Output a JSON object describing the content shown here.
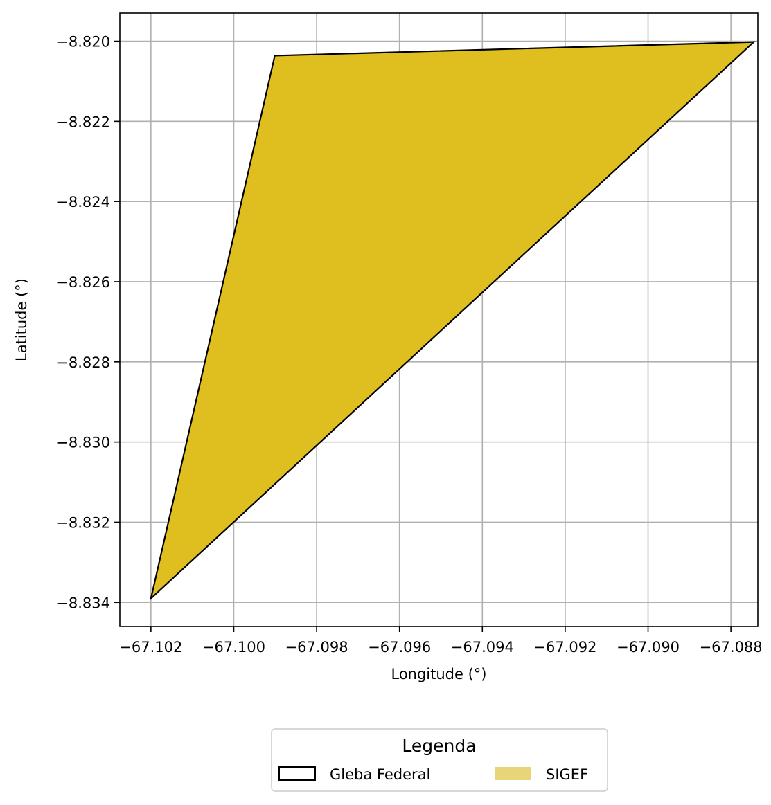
{
  "chart_data": {
    "type": "map",
    "xlabel": "Longitude (°)",
    "ylabel": "Latitude (°)",
    "xlim": [
      -67.10275,
      -67.08735
    ],
    "ylim": [
      -8.8346,
      -8.8193
    ],
    "xticks": [
      -67.102,
      -67.1,
      -67.098,
      -67.096,
      -67.094,
      -67.092,
      -67.09,
      -67.088
    ],
    "xtick_labels": [
      "−67.102",
      "−67.100",
      "−67.098",
      "−67.096",
      "−67.094",
      "−67.092",
      "−67.090",
      "−67.088"
    ],
    "yticks": [
      -8.82,
      -8.822,
      -8.824,
      -8.826,
      -8.828,
      -8.83,
      -8.832,
      -8.834
    ],
    "ytick_labels": [
      "−8.820",
      "−8.822",
      "−8.824",
      "−8.826",
      "−8.828",
      "−8.830",
      "−8.832",
      "−8.834"
    ],
    "grid": true,
    "legend": {
      "placement": "bottom-center",
      "title": "Legenda",
      "entries": [
        "Gleba Federal",
        "SIGEF"
      ]
    },
    "polygons": [
      {
        "name": "SIGEF",
        "fill": "#dfbe20",
        "coordinates": [
          [
            -67.102,
            -8.8339
          ],
          [
            -67.09901,
            -8.82036
          ],
          [
            -67.08745,
            -8.82002
          ]
        ]
      },
      {
        "name": "Gleba Federal",
        "fill": "none",
        "stroke": "#000000",
        "coordinates": [
          [
            -67.102,
            -8.8339
          ],
          [
            -67.09901,
            -8.82036
          ],
          [
            -67.08745,
            -8.82002
          ]
        ]
      }
    ],
    "colors": {
      "sigef_fill": "#dfbe20",
      "legend_sigef_swatch": "#e8d57a",
      "outline": "#000000",
      "grid": "#b0b0b0"
    }
  }
}
